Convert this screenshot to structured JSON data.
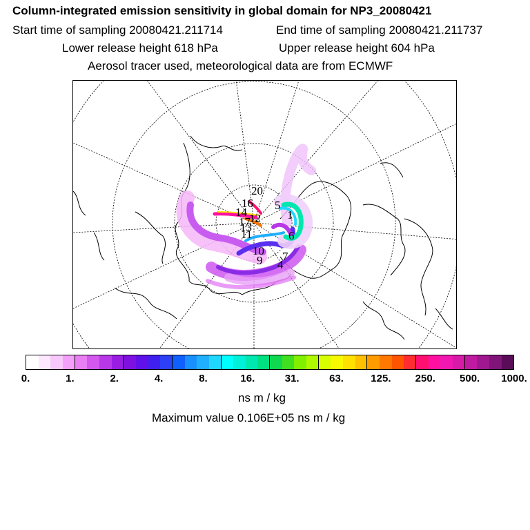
{
  "header": {
    "title": "Column-integrated emission sensitivity in global domain for NP3_20080421",
    "start": "Start time of sampling 20080421.211714",
    "end": "End time of sampling 20080421.211737",
    "lower": "Lower release height  618 hPa",
    "upper": "Upper release height  604 hPa",
    "info": "Aerosol tracer used, meteorological data are from ECMWF"
  },
  "map": {
    "labels": [
      "20",
      "16",
      "5",
      "1",
      "14",
      "12",
      "17",
      "13",
      "11",
      "6",
      "10",
      "9",
      "7",
      "4"
    ]
  },
  "colorbar": {
    "ticks": [
      "0.",
      "1.",
      "2.",
      "4.",
      "8.",
      "16.",
      "31.",
      "63.",
      "125.",
      "250.",
      "500.",
      "1000."
    ],
    "colors": [
      "#ffffff",
      "#fde8ff",
      "#f8c8fc",
      "#f2a0fa",
      "#e87ff5",
      "#d258ee",
      "#b838e8",
      "#9a1ee2",
      "#7e10e0",
      "#6010e8",
      "#4020f0",
      "#2c40f8",
      "#1060ff",
      "#1890ff",
      "#20b0ff",
      "#20d8ff",
      "#00ffff",
      "#00f0d8",
      "#00e8b0",
      "#00e080",
      "#10d850",
      "#40e020",
      "#80f000",
      "#b0f800",
      "#d8ff00",
      "#f8f800",
      "#ffe000",
      "#ffc000",
      "#ff9c00",
      "#ff7800",
      "#ff5400",
      "#ff2c30",
      "#ff1070",
      "#ff10a0",
      "#f018b0",
      "#d81aa8",
      "#c01aa0",
      "#a01890",
      "#801478",
      "#5a0c58"
    ],
    "units": "ns m / kg",
    "max_text": "Maximum value  0.106E+05 ns m / kg"
  }
}
